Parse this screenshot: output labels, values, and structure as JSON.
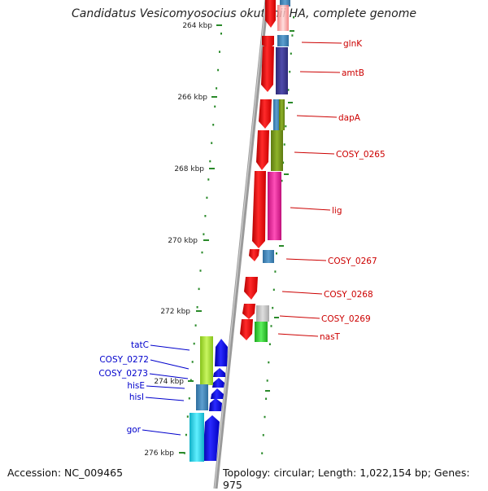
{
  "title": "Candidatus Vesicomyosocius okutanii HA, complete genome",
  "footer": {
    "accession": "Accession: NC_009465",
    "summary": "Topology: circular; Length: 1,022,154 bp; Genes: 975"
  },
  "ticks": [
    "264 kbp",
    "266 kbp",
    "268 kbp",
    "270 kbp",
    "272 kbp",
    "274 kbp",
    "276 kbp"
  ],
  "forward_genes": [
    "glnK",
    "amtB",
    "dapA",
    "COSY_0265",
    "lig",
    "COSY_0267",
    "COSY_0268",
    "COSY_0269",
    "nasT"
  ],
  "reverse_genes": [
    "tatC",
    "COSY_0272",
    "COSY_0273",
    "hisE",
    "hisI",
    "gor"
  ],
  "colors": {
    "forward_strand": "#ff0000",
    "reverse_strand": "#0000ee",
    "label_forward": "#cc0000",
    "label_reverse": "#0000cc",
    "tick": "#2a8a2a",
    "backbone": "#888888"
  }
}
